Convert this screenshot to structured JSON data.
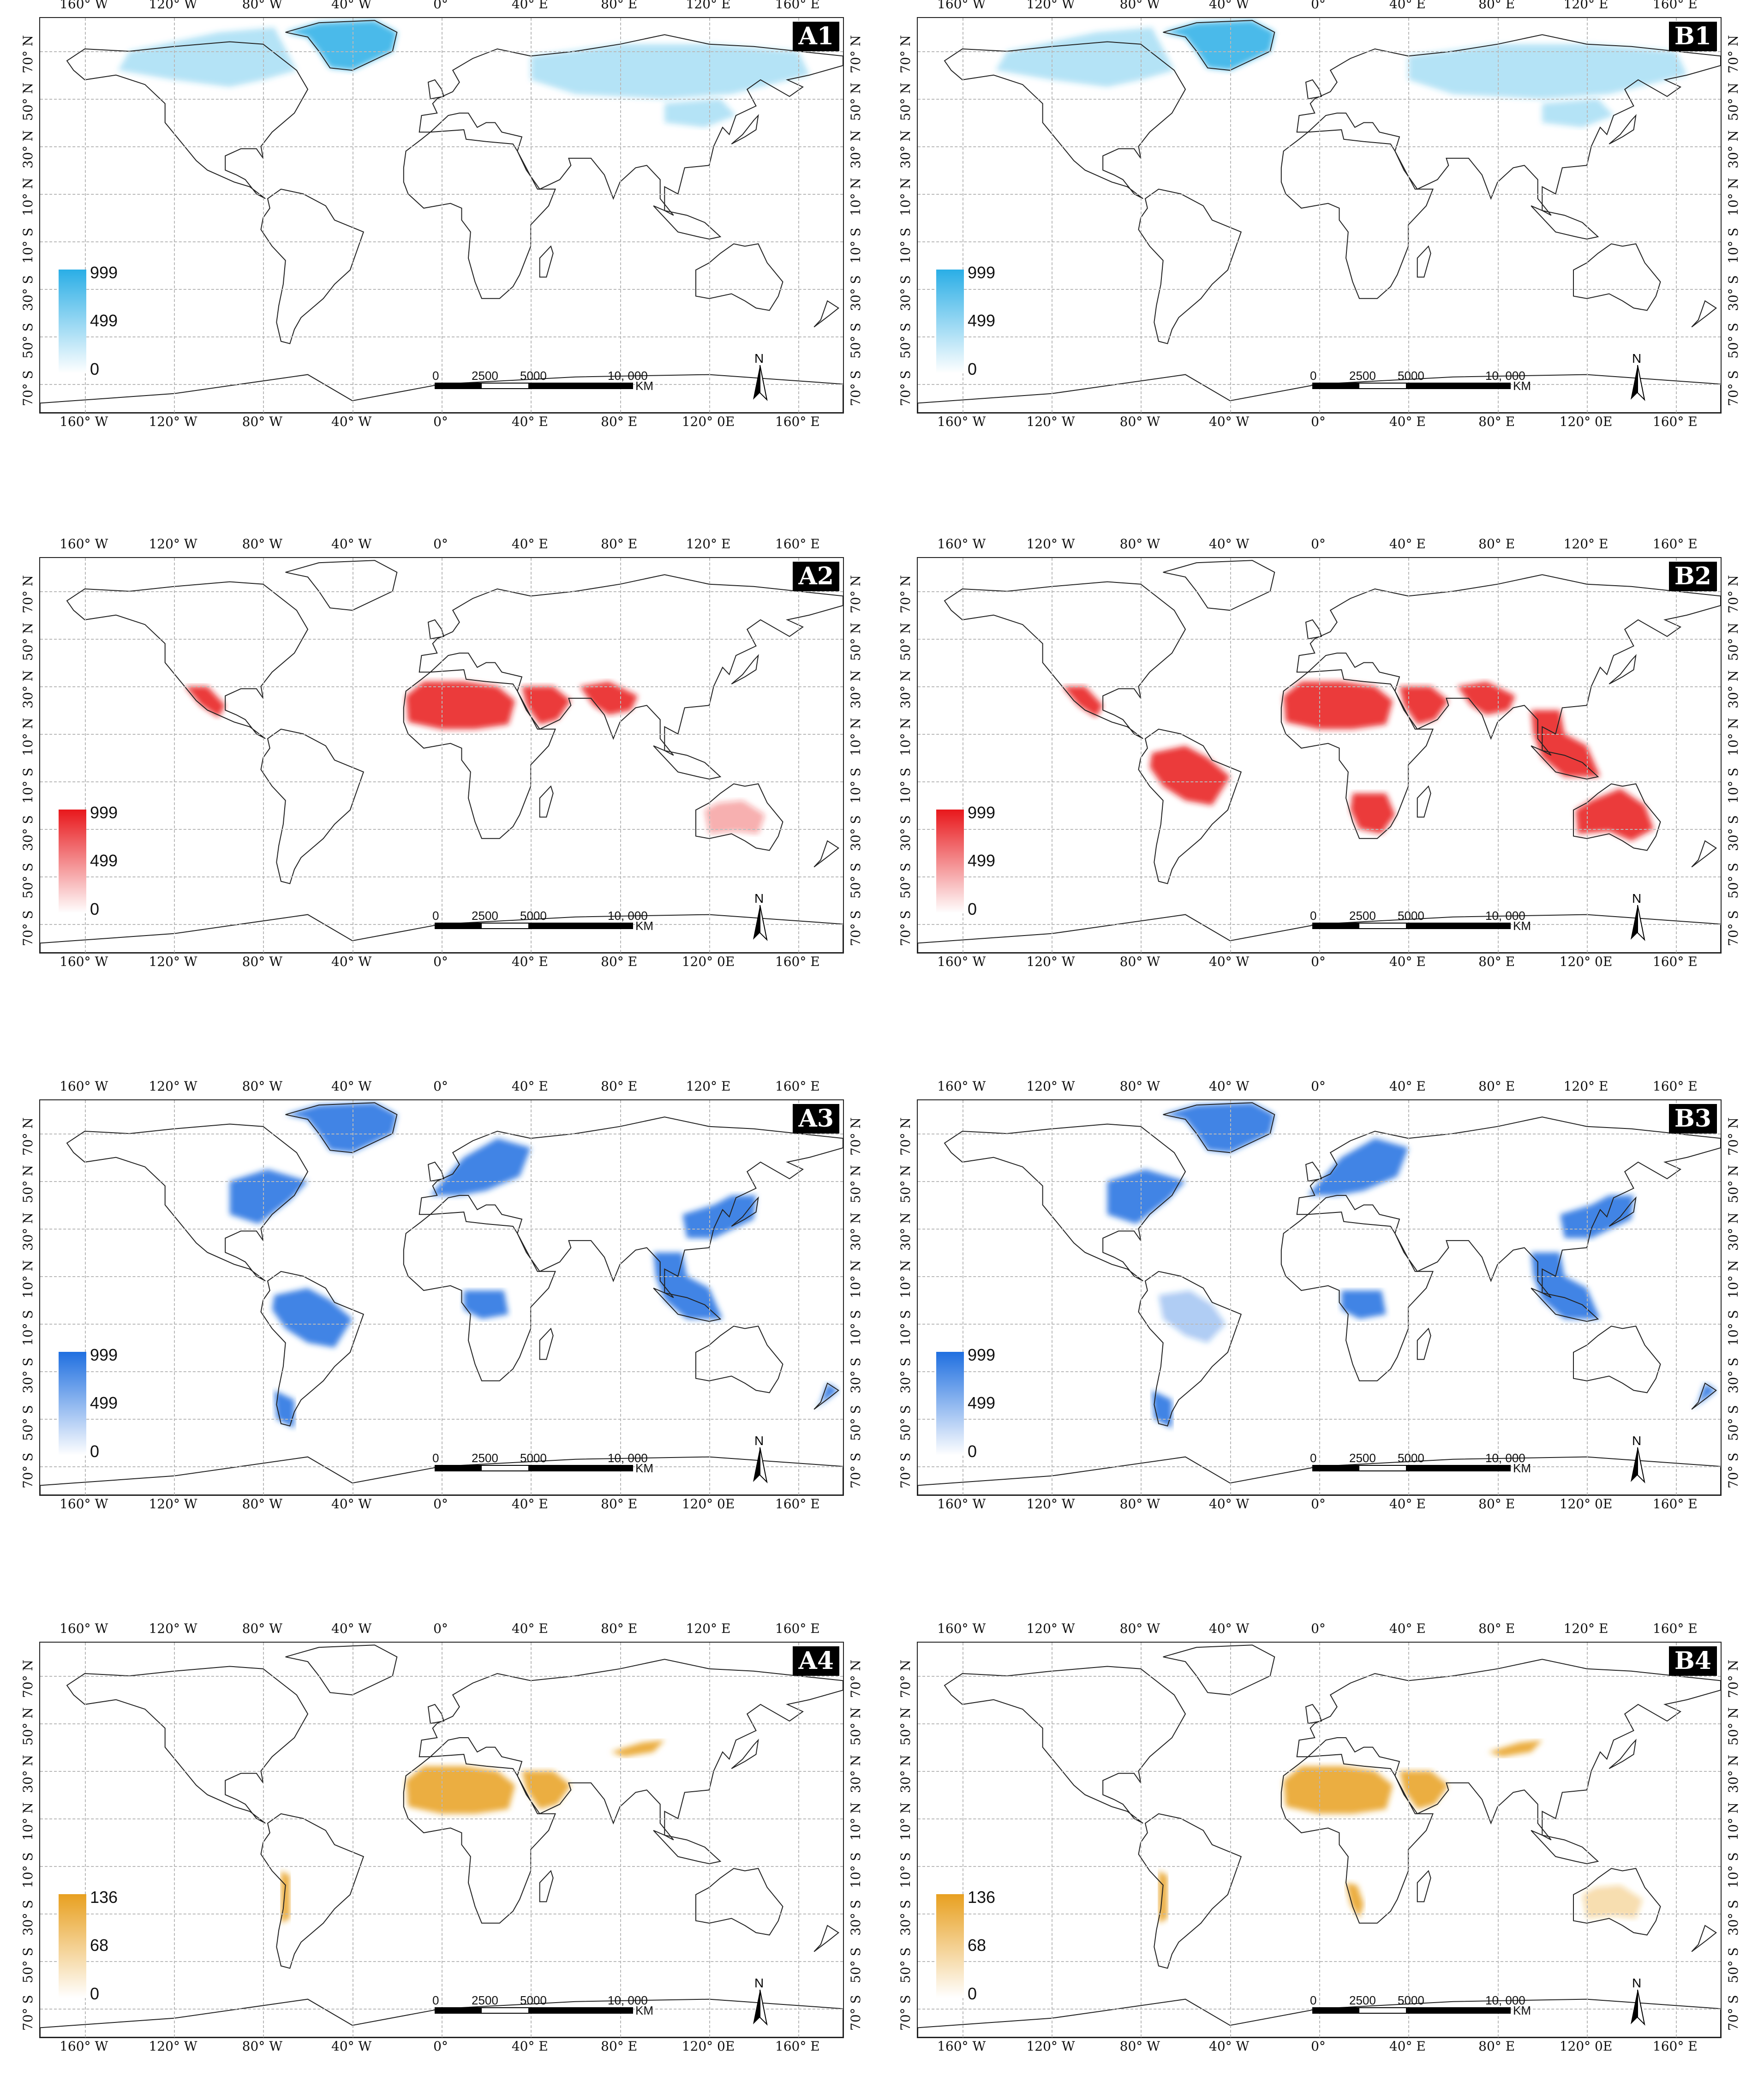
{
  "grid": {
    "top_labels": [
      "160° W",
      "120° W",
      "80° W",
      "40° W",
      "0°",
      "40° E",
      "80° E",
      "120° E",
      "160° E"
    ],
    "bottom_labels_A": [
      "160° W",
      "120° W",
      "80° W",
      "40° W",
      "0°",
      "40° E",
      "80° E",
      "120° 0E",
      "160° E"
    ],
    "lat_labels": [
      "70° N",
      "50° N",
      "30° N",
      "10° N",
      "10° S",
      "30° S",
      "50° S",
      "70° S"
    ]
  },
  "scale_bar": {
    "labels": [
      "0",
      "2500",
      "5000",
      "10, 000"
    ],
    "unit": "KM"
  },
  "north_label": "N",
  "panels": [
    {
      "id": "A1",
      "color": "#2aaee6",
      "legend": [
        "999",
        "499",
        "0"
      ],
      "regions": [
        "greenland",
        "canada",
        "siberia",
        "eastasia"
      ]
    },
    {
      "id": "B1",
      "color": "#2aaee6",
      "legend": [
        "999",
        "499",
        "0"
      ],
      "regions": [
        "greenland",
        "canada",
        "siberia",
        "eastasia"
      ]
    },
    {
      "id": "A2",
      "color": "#e8171b",
      "legend": [
        "999",
        "499",
        "0"
      ],
      "regions": [
        "sahara",
        "arabia",
        "india",
        "australia_light",
        "mexico"
      ]
    },
    {
      "id": "B2",
      "color": "#e8171b",
      "legend": [
        "999",
        "499",
        "0"
      ],
      "regions": [
        "sahara",
        "arabia",
        "india",
        "australia",
        "mexico",
        "amazon",
        "southern_africa",
        "seasia"
      ]
    },
    {
      "id": "A3",
      "color": "#1f6fe0",
      "legend": [
        "999",
        "499",
        "0"
      ],
      "regions": [
        "greenland",
        "canada_east",
        "europe",
        "china_east",
        "amazon",
        "seasia",
        "congo",
        "patagonia",
        "nz"
      ]
    },
    {
      "id": "B3",
      "color": "#1f6fe0",
      "legend": [
        "999",
        "499",
        "0"
      ],
      "regions": [
        "greenland",
        "canada_east",
        "europe",
        "china_east",
        "amazon_light",
        "seasia",
        "congo",
        "patagonia",
        "nz"
      ]
    },
    {
      "id": "A4",
      "color": "#e8a020",
      "legend": [
        "136",
        "68",
        "0"
      ],
      "regions": [
        "sahara",
        "taklamakan",
        "arabia",
        "atacama"
      ]
    },
    {
      "id": "B4",
      "color": "#e8a020",
      "legend": [
        "136",
        "68",
        "0"
      ],
      "regions": [
        "sahara",
        "taklamakan",
        "arabia",
        "atacama",
        "namib",
        "australia_light"
      ]
    }
  ]
}
